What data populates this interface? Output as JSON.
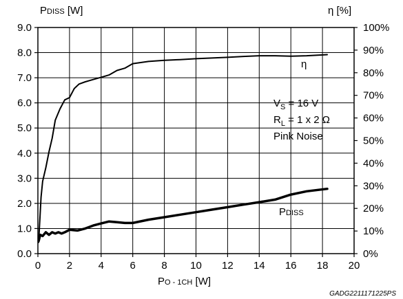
{
  "chart_data": {
    "type": "line",
    "y_left_label": {
      "main": "P",
      "sub": "DISS",
      "unit": " [W]"
    },
    "y_right_label": "η [%]",
    "x_label": {
      "main": "P",
      "sub": "O - 1CH",
      "unit": " [W]"
    },
    "xlim": [
      0,
      20
    ],
    "y_left_lim": [
      0,
      9
    ],
    "y_right_lim": [
      0,
      100
    ],
    "x_ticks": [
      "0",
      "2",
      "4",
      "6",
      "8",
      "10",
      "12",
      "14",
      "16",
      "18",
      "20"
    ],
    "y_left_ticks": [
      "0.0",
      "1.0",
      "2.0",
      "3.0",
      "4.0",
      "5.0",
      "6.0",
      "7.0",
      "8.0",
      "9.0"
    ],
    "y_right_ticks": [
      "0%",
      "10%",
      "20%",
      "30%",
      "40%",
      "50%",
      "60%",
      "70%",
      "80%",
      "90%",
      "100%"
    ],
    "grid": true,
    "conditions": {
      "vs": {
        "main": "V",
        "sub": "S",
        "rest": " = 16 V"
      },
      "rl": {
        "main": "R",
        "sub": "L",
        "rest": " = 1 x 2 Ω"
      },
      "noise": "Pink Noise"
    },
    "series": [
      {
        "key": "eta",
        "axis": "right",
        "label": "η",
        "x": [
          0.05,
          0.1,
          0.2,
          0.3,
          0.5,
          0.7,
          0.9,
          1.1,
          1.4,
          1.7,
          2.0,
          2.3,
          2.6,
          3.0,
          3.5,
          4.0,
          4.5,
          5.0,
          5.5,
          6.0,
          7.0,
          8.0,
          9.0,
          10.0,
          11.0,
          12.0,
          13.0,
          14.0,
          15.0,
          16.0,
          17.0,
          18.3
        ],
        "y": [
          5,
          12,
          25,
          32,
          38,
          45,
          51,
          59,
          64,
          68,
          69,
          73,
          75,
          76,
          77,
          78,
          79,
          81,
          82,
          84,
          85,
          85.5,
          85.8,
          86.2,
          86.5,
          86.8,
          87.2,
          87.5,
          87.5,
          87.3,
          87.5,
          88
        ]
      },
      {
        "key": "pdiss",
        "axis": "left",
        "label": {
          "main": "P",
          "sub": "DISS"
        },
        "x": [
          0.05,
          0.15,
          0.3,
          0.5,
          0.7,
          0.9,
          1.1,
          1.3,
          1.5,
          1.7,
          2.0,
          2.5,
          3.0,
          3.5,
          4.0,
          4.5,
          5.0,
          5.5,
          6.0,
          7.0,
          8.0,
          9.0,
          10.0,
          11.0,
          12.0,
          13.0,
          14.0,
          15.0,
          16.0,
          17.0,
          18.3
        ],
        "y": [
          0.5,
          0.75,
          0.7,
          0.85,
          0.75,
          0.85,
          0.8,
          0.85,
          0.8,
          0.85,
          0.95,
          0.92,
          1.0,
          1.12,
          1.2,
          1.28,
          1.25,
          1.22,
          1.22,
          1.35,
          1.45,
          1.55,
          1.65,
          1.75,
          1.85,
          1.95,
          2.05,
          2.15,
          2.35,
          2.48,
          2.58
        ]
      }
    ]
  },
  "source_code": "GADG2211171225PS"
}
